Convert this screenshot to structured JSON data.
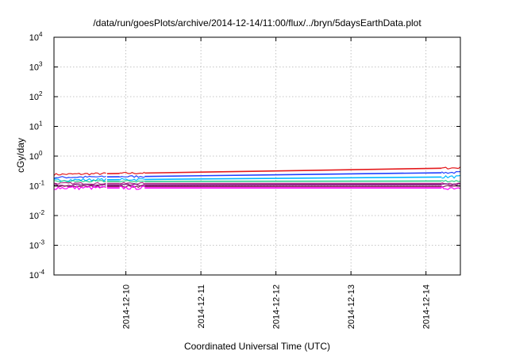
{
  "chart_data": {
    "type": "line",
    "title": "/data/run/goesPlots/archive/2014-12-14/11:00/flux/../bryn/5daysEarthData.plot",
    "xlabel": "Coordinated Universal Time (UTC)",
    "ylabel": "cGy/day",
    "yscale": "log",
    "ylim": [
      0.0001,
      10000
    ],
    "xlim": [
      "2014-12-09 01:00",
      "2014-12-14 11:00"
    ],
    "grid": true,
    "legend": "none",
    "y_ticks": [
      {
        "base": "10",
        "exp": "-4",
        "value": 0.0001
      },
      {
        "base": "10",
        "exp": "-3",
        "value": 0.001
      },
      {
        "base": "10",
        "exp": "-2",
        "value": 0.01
      },
      {
        "base": "10",
        "exp": "-1",
        "value": 0.1
      },
      {
        "base": "10",
        "exp": "0",
        "value": 1
      },
      {
        "base": "10",
        "exp": "1",
        "value": 10
      },
      {
        "base": "10",
        "exp": "2",
        "value": 100
      },
      {
        "base": "10",
        "exp": "3",
        "value": 1000
      },
      {
        "base": "10",
        "exp": "4",
        "value": 10000
      }
    ],
    "x_ticks": [
      "2014-12-10",
      "2014-12-11",
      "2014-12-12",
      "2014-12-13",
      "2014-12-14"
    ],
    "data_segments": [
      [
        "2014-12-09 01:00",
        "2014-12-09 18:00"
      ],
      [
        "2014-12-09 22:00",
        "2014-12-10 06:00"
      ],
      [
        "2014-12-14 05:00",
        "2014-12-14 11:00"
      ]
    ],
    "series": [
      {
        "color": "#e41a1c",
        "start": 0.24,
        "end": 0.4,
        "noise": 0.08
      },
      {
        "color": "#1f3fff",
        "start": 0.19,
        "end": 0.28,
        "noise": 0.08
      },
      {
        "color": "#00b7ff",
        "start": 0.155,
        "end": 0.2,
        "noise": 0.1
      },
      {
        "color": "#2ed08a",
        "start": 0.14,
        "end": 0.145,
        "noise": 0.08
      },
      {
        "color": "#b52a8c",
        "start": 0.12,
        "end": 0.12,
        "noise": 0.07
      },
      {
        "color": "#7a0f7a",
        "start": 0.105,
        "end": 0.11,
        "noise": 0.07
      },
      {
        "color": "#8a1a5a",
        "start": 0.095,
        "end": 0.095,
        "noise": 0.07
      },
      {
        "color": "#ff00ff",
        "start": 0.085,
        "end": 0.085,
        "noise": 0.14
      }
    ]
  }
}
